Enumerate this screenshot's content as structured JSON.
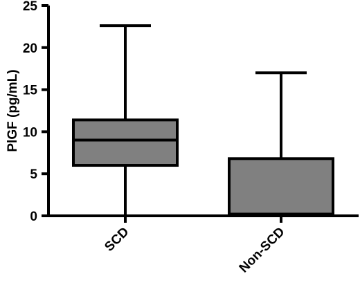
{
  "chart_data": {
    "type": "box",
    "ylabel": "PlGF (pg/mL)",
    "xlabel": "",
    "title": "",
    "ylim": [
      0,
      25
    ],
    "yticks": [
      0,
      5,
      10,
      15,
      20,
      25
    ],
    "grid": false,
    "colors": {
      "box_fill": "#808080",
      "stroke": "#000000"
    },
    "categories": [
      "SCD",
      "Non-SCD"
    ],
    "boxes": [
      {
        "category": "SCD",
        "min": 0,
        "q1": 6,
        "median": 9,
        "q3": 11.4,
        "max": 22.6
      },
      {
        "category": "Non-SCD",
        "min": 0,
        "q1": 0.2,
        "median": 0.2,
        "q3": 6.8,
        "max": 17
      }
    ]
  }
}
